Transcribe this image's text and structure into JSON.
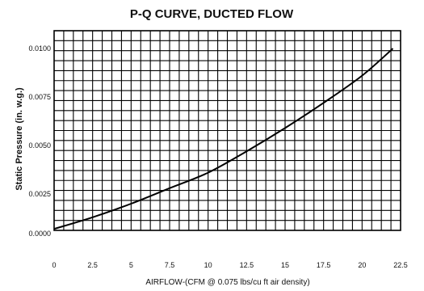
{
  "chart_data": {
    "type": "line",
    "title": "P-Q CURVE, DUCTED FLOW",
    "xlabel": "AIRFLOW-(CFM @ 0.075  lbs/cu  ft air density)",
    "ylabel": "Static Pressure (in. w.g.)",
    "xlim": [
      0,
      22.5
    ],
    "ylim": [
      0,
      0.0105
    ],
    "x_ticks": [
      "0",
      "2.5",
      "5",
      "7.5",
      "10",
      "12.5",
      "15",
      "17.5",
      "20",
      "22.5"
    ],
    "y_ticks": [
      "0.0000",
      "0.0025",
      "0.0050",
      "0.0075",
      "0.0100"
    ],
    "grid": true,
    "series": [
      {
        "x": [
          0,
          2.5,
          5,
          7.5,
          10,
          12.5,
          15,
          17.5,
          20,
          22
        ],
        "values": [
          0.0007,
          0.0013,
          0.002,
          0.0028,
          0.0036,
          0.0047,
          0.0059,
          0.0072,
          0.0086,
          0.01
        ]
      }
    ],
    "colors": {
      "grid": "#000000",
      "line": "#000000"
    }
  }
}
